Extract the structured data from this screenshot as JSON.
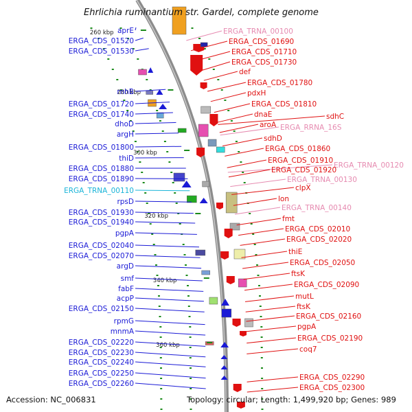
{
  "title": "Ehrlichia ruminantium str. Gardel, complete genome",
  "accession": "Accession: NC_006831",
  "topology": "Topology: circular; Length: 1,499,920 bp; Genes: 989",
  "colors": {
    "cds_left": "#1a1ad6",
    "cds_right": "#e01010",
    "rna": "#e68ab0",
    "trna_left": "#19b4d8",
    "backbone": "#8c8c8c",
    "tick": "#1a8a1a"
  },
  "ruler": [
    {
      "label": "260 kbp"
    },
    {
      "label": "280 kbp"
    },
    {
      "label": "300 kbp"
    },
    {
      "label": "320 kbp"
    },
    {
      "label": "340 kbp"
    },
    {
      "label": "360 kbp"
    }
  ],
  "left_labels": [
    {
      "text": "aprE",
      "kind": "cds"
    },
    {
      "text": "ERGA_CDS_01520",
      "kind": "cds"
    },
    {
      "text": "ERGA_CDS_01530",
      "kind": "cds"
    },
    {
      "text": "rnhB",
      "kind": "cds"
    },
    {
      "text": "ERGA_CDS_01720",
      "kind": "cds"
    },
    {
      "text": "ERGA_CDS_01740",
      "kind": "cds"
    },
    {
      "text": "dhoD",
      "kind": "cds"
    },
    {
      "text": "argH",
      "kind": "cds"
    },
    {
      "text": "ERGA_CDS_01800",
      "kind": "cds"
    },
    {
      "text": "thiD",
      "kind": "cds"
    },
    {
      "text": "ERGA_CDS_01880",
      "kind": "cds"
    },
    {
      "text": "ERGA_CDS_01890",
      "kind": "cds"
    },
    {
      "text": "ERGA_TRNA_00110",
      "kind": "trna"
    },
    {
      "text": "rpsD",
      "kind": "cds"
    },
    {
      "text": "ERGA_CDS_01930",
      "kind": "cds"
    },
    {
      "text": "ERGA_CDS_01940",
      "kind": "cds"
    },
    {
      "text": "pgpA",
      "kind": "cds"
    },
    {
      "text": "ERGA_CDS_02040",
      "kind": "cds"
    },
    {
      "text": "ERGA_CDS_02070",
      "kind": "cds"
    },
    {
      "text": "argD",
      "kind": "cds"
    },
    {
      "text": "smf",
      "kind": "cds"
    },
    {
      "text": "fabF",
      "kind": "cds"
    },
    {
      "text": "acpP",
      "kind": "cds"
    },
    {
      "text": "ERGA_CDS_02150",
      "kind": "cds"
    },
    {
      "text": "rpmG",
      "kind": "cds"
    },
    {
      "text": "mnmA",
      "kind": "cds"
    },
    {
      "text": "ERGA_CDS_02220",
      "kind": "cds"
    },
    {
      "text": "ERGA_CDS_02230",
      "kind": "cds"
    },
    {
      "text": "ERGA_CDS_02240",
      "kind": "cds"
    },
    {
      "text": "ERGA_CDS_02250",
      "kind": "cds"
    },
    {
      "text": "ERGA_CDS_02260",
      "kind": "cds"
    }
  ],
  "right_labels": [
    {
      "text": "ERGA_TRNA_00100",
      "kind": "rna"
    },
    {
      "text": "ERGA_CDS_01690",
      "kind": "cds"
    },
    {
      "text": "ERGA_CDS_01710",
      "kind": "cds"
    },
    {
      "text": "ERGA_CDS_01730",
      "kind": "cds"
    },
    {
      "text": "def",
      "kind": "cds"
    },
    {
      "text": "ERGA_CDS_01780",
      "kind": "cds"
    },
    {
      "text": "pdxH",
      "kind": "cds"
    },
    {
      "text": "ERGA_CDS_01810",
      "kind": "cds"
    },
    {
      "text": "sdhC",
      "kind": "cds"
    },
    {
      "text": "dnaE",
      "kind": "cds"
    },
    {
      "text": "aroA",
      "kind": "cds"
    },
    {
      "text": "ERGA_RRNA_16S",
      "kind": "rna"
    },
    {
      "text": "sdhD",
      "kind": "cds"
    },
    {
      "text": "ERGA_CDS_01860",
      "kind": "cds"
    },
    {
      "text": "ERGA_CDS_01910",
      "kind": "cds"
    },
    {
      "text": "ERGA_TRNA_00120",
      "kind": "rna"
    },
    {
      "text": "ERGA_CDS_01920",
      "kind": "cds"
    },
    {
      "text": "ERGA_TRNA_00130",
      "kind": "rna"
    },
    {
      "text": "clpX",
      "kind": "cds"
    },
    {
      "text": "lon",
      "kind": "cds"
    },
    {
      "text": "ERGA_TRNA_00140",
      "kind": "rna"
    },
    {
      "text": "fmt",
      "kind": "cds"
    },
    {
      "text": "ERGA_CDS_02010",
      "kind": "cds"
    },
    {
      "text": "ERGA_CDS_02020",
      "kind": "cds"
    },
    {
      "text": "thiE",
      "kind": "cds"
    },
    {
      "text": "ERGA_CDS_02050",
      "kind": "cds"
    },
    {
      "text": "ftsK",
      "kind": "cds"
    },
    {
      "text": "ERGA_CDS_02090",
      "kind": "cds"
    },
    {
      "text": "mutL",
      "kind": "cds"
    },
    {
      "text": "ftsK",
      "kind": "cds"
    },
    {
      "text": "ERGA_CDS_02160",
      "kind": "cds"
    },
    {
      "text": "pgpA",
      "kind": "cds"
    },
    {
      "text": "ERGA_CDS_02190",
      "kind": "cds"
    },
    {
      "text": "coq7",
      "kind": "cds"
    },
    {
      "text": "ERGA_CDS_02290",
      "kind": "cds"
    },
    {
      "text": "ERGA_CDS_02300",
      "kind": "cds"
    }
  ]
}
